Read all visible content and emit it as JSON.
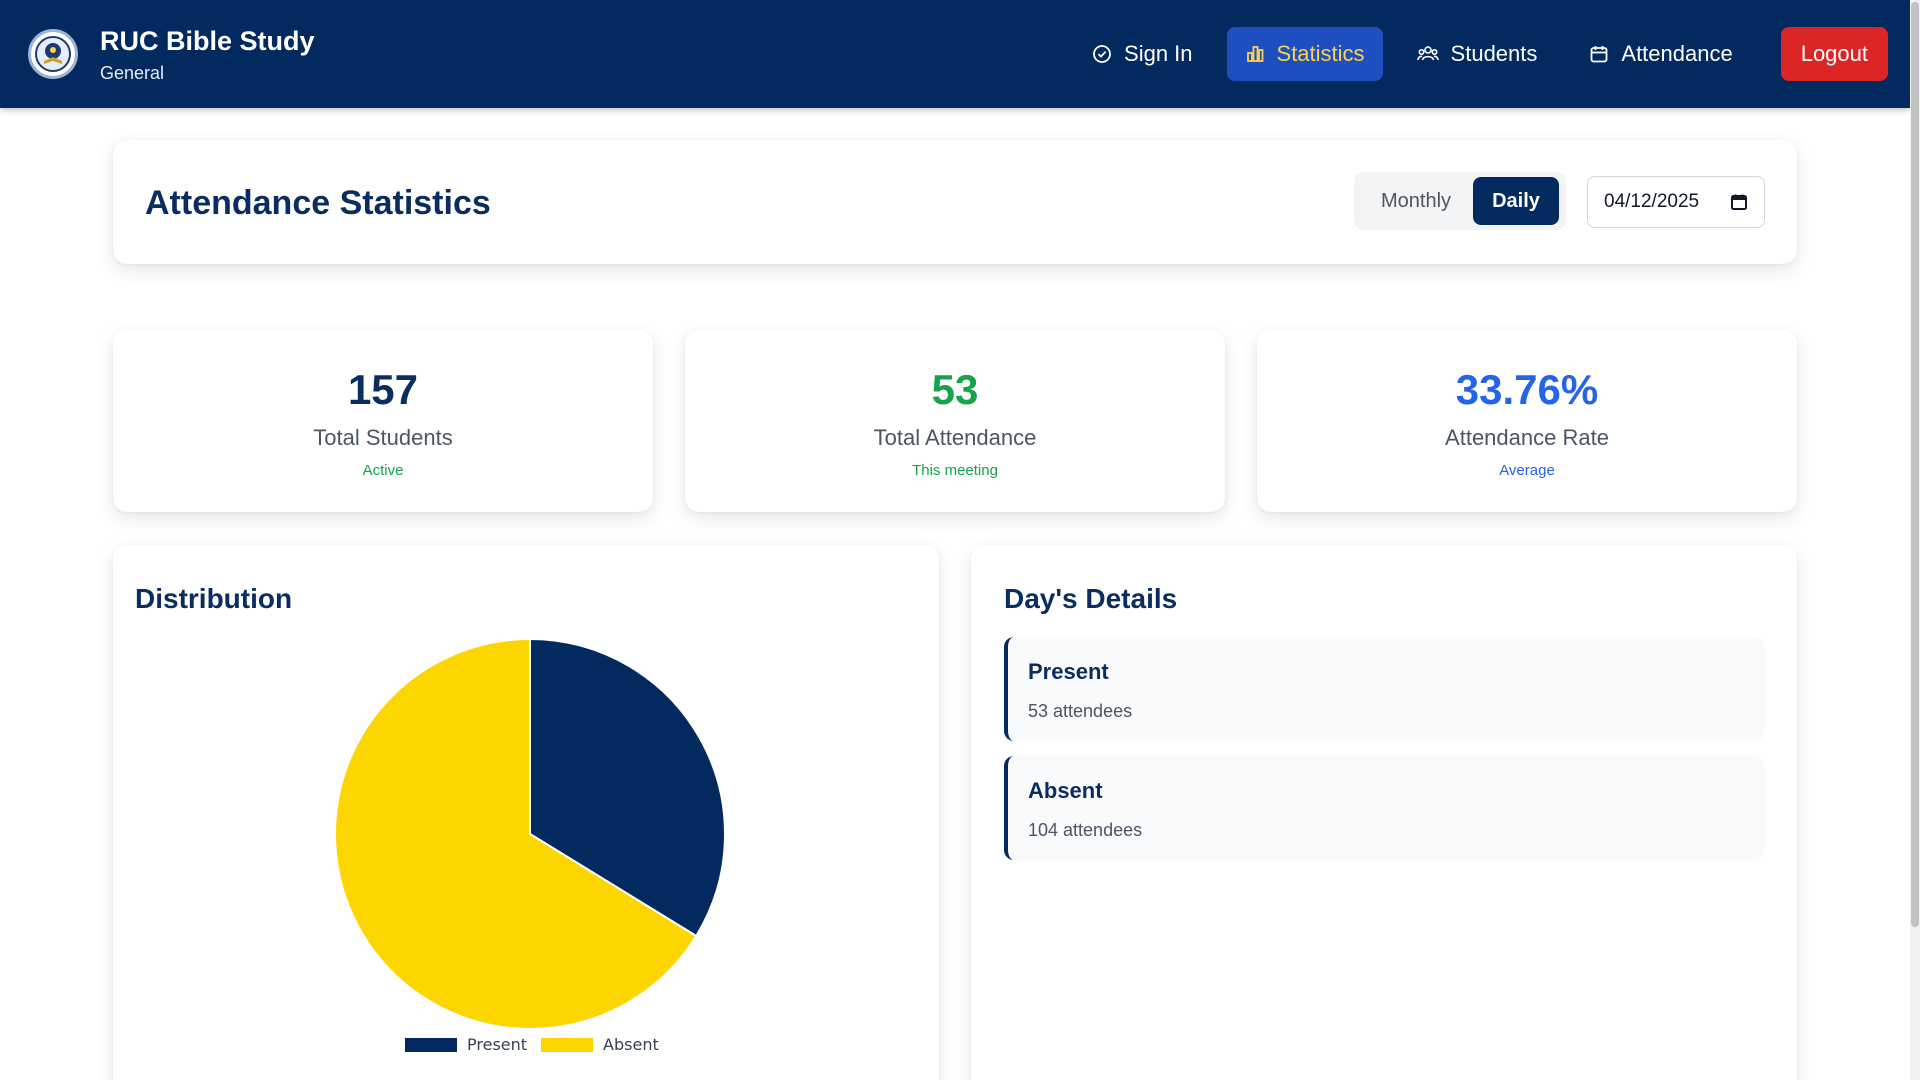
{
  "brand": {
    "title": "RUC Bible Study",
    "subtitle": "General"
  },
  "nav": {
    "items": [
      {
        "label": "Sign In",
        "icon": "check-circle-icon"
      },
      {
        "label": "Statistics",
        "icon": "bar-chart-icon",
        "active": true
      },
      {
        "label": "Students",
        "icon": "users-icon"
      },
      {
        "label": "Attendance",
        "icon": "calendar-icon"
      }
    ],
    "logout": "Logout"
  },
  "header": {
    "title": "Attendance Statistics",
    "toggle": {
      "monthly": "Monthly",
      "daily": "Daily",
      "selected": "Daily"
    },
    "date": "04/12/2025"
  },
  "stats": [
    {
      "value": "157",
      "label": "Total Students",
      "sub": "Active",
      "value_color": "#0b2c5f",
      "sub_color": "#16a34a"
    },
    {
      "value": "53",
      "label": "Total Attendance",
      "sub": "This meeting",
      "value_color": "#16a34a",
      "sub_color": "#16a34a"
    },
    {
      "value": "33.76%",
      "label": "Attendance Rate",
      "sub": "Average",
      "value_color": "#2563eb",
      "sub_color": "#2563eb"
    }
  ],
  "distribution": {
    "title": "Distribution",
    "chart_data": {
      "type": "pie",
      "categories": [
        "Present",
        "Absent"
      ],
      "values": [
        53,
        104
      ],
      "colors": [
        "#022a5e",
        "#fdd600"
      ],
      "legend": "bottom"
    }
  },
  "details": {
    "title": "Day's Details",
    "rows": [
      {
        "title": "Present",
        "sub": "53 attendees"
      },
      {
        "title": "Absent",
        "sub": "104 attendees"
      }
    ]
  },
  "colors": {
    "navbar": "#022a5e",
    "active_nav": "#1d4fc0",
    "active_text": "#fcd34d",
    "logout": "#dc2626"
  }
}
